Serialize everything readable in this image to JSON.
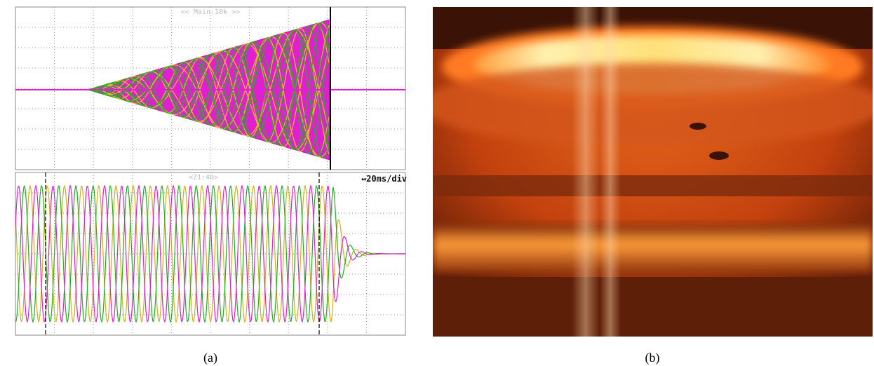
{
  "panel_a": {
    "top_label": "<< Main:10k >>",
    "bottom_label": "<Z1:40>",
    "timebase": "↔20ms/div",
    "caption": "(a)"
  },
  "panel_b": {
    "caption": "(b)"
  }
}
